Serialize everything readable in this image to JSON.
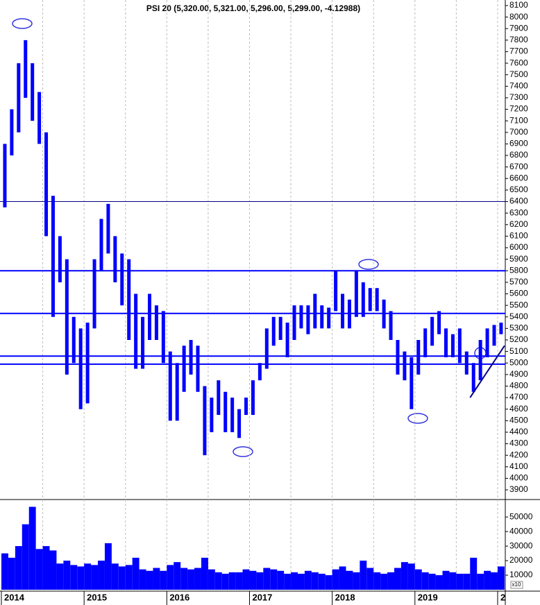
{
  "chart_data": {
    "type": "range-bar",
    "title": "PSI 20 (5,320.00, 5,321.00, 5,296.00, 5,299.00, -4.12988)",
    "color": "#0000ff",
    "categories": [
      "2014",
      null,
      null,
      null,
      null,
      null,
      null,
      null,
      null,
      null,
      null,
      null,
      "2015",
      null,
      null,
      null,
      null,
      null,
      null,
      null,
      null,
      null,
      null,
      null,
      "2016",
      null,
      null,
      null,
      null,
      null,
      null,
      null,
      null,
      null,
      null,
      null,
      "2017",
      null,
      null,
      null,
      null,
      null,
      null,
      null,
      null,
      null,
      null,
      null,
      "2018",
      null,
      null,
      null,
      null,
      null,
      null,
      null,
      null,
      null,
      null,
      null,
      "2019",
      null,
      null,
      null,
      null,
      null,
      null,
      null,
      null,
      null,
      null,
      null,
      "2"
    ],
    "high": [
      6900,
      7200,
      7600,
      7800,
      7600,
      7350,
      7000,
      6450,
      6100,
      5900,
      5400,
      5300,
      5350,
      5900,
      6250,
      6380,
      6100,
      5950,
      5900,
      5600,
      5400,
      5600,
      5500,
      5450,
      5100,
      5000,
      5150,
      5200,
      5150,
      4800,
      4700,
      4850,
      4750,
      4700,
      4600,
      4700,
      4850,
      5000,
      5300,
      5400,
      5400,
      5350,
      5500,
      5500,
      5500,
      5600,
      5500,
      5480,
      5800,
      5600,
      5550,
      5800,
      5700,
      5650,
      5650,
      5550,
      5450,
      5200,
      5100,
      5050,
      5200,
      5300,
      5400,
      5450,
      5300,
      5250,
      5300,
      5100,
      5000,
      5200,
      5300,
      5330,
      5350
    ],
    "low": [
      6350,
      6800,
      7000,
      7300,
      7100,
      6900,
      6100,
      5400,
      5700,
      4900,
      5000,
      4600,
      4650,
      5300,
      5800,
      5950,
      5700,
      5500,
      5200,
      4950,
      4950,
      5200,
      5200,
      5000,
      4500,
      4500,
      4750,
      4900,
      4750,
      4200,
      4400,
      4550,
      4400,
      4400,
      4350,
      4550,
      4550,
      4850,
      4950,
      5150,
      5200,
      5050,
      5200,
      5300,
      5250,
      5300,
      5300,
      5300,
      5450,
      5300,
      5300,
      5400,
      5400,
      5450,
      5450,
      5300,
      5200,
      4900,
      4850,
      4600,
      4900,
      5050,
      5150,
      5250,
      5050,
      5050,
      5000,
      4900,
      4750,
      4850,
      5050,
      5150,
      5250
    ],
    "volume": [
      25000,
      22000,
      30000,
      45000,
      57000,
      28000,
      30000,
      27000,
      18000,
      20000,
      17000,
      16000,
      18000,
      17000,
      20000,
      32000,
      18000,
      16000,
      17000,
      22000,
      14000,
      13000,
      15000,
      13000,
      17000,
      19000,
      15000,
      14000,
      15000,
      22000,
      14000,
      12000,
      11000,
      12000,
      12000,
      14000,
      13000,
      12000,
      15000,
      14000,
      13000,
      11000,
      12000,
      11000,
      13000,
      12000,
      11000,
      10000,
      14000,
      16000,
      13000,
      12000,
      20000,
      15000,
      12000,
      11000,
      12000,
      15000,
      19000,
      18000,
      14000,
      12000,
      11000,
      10000,
      13000,
      12000,
      11000,
      11000,
      22000,
      11000,
      13000,
      12000,
      16000
    ],
    "ylim": [
      3816,
      8148
    ],
    "yticks": [
      3900,
      4000,
      4100,
      4200,
      4300,
      4400,
      4500,
      4600,
      4700,
      4800,
      4900,
      5000,
      5100,
      5200,
      5300,
      5400,
      5500,
      5600,
      5700,
      5800,
      5900,
      6000,
      6100,
      6200,
      6300,
      6400,
      6500,
      6600,
      6700,
      6800,
      6900,
      7000,
      7100,
      7200,
      7300,
      7400,
      7500,
      7600,
      7700,
      7800,
      7900,
      8000,
      8100
    ],
    "y2lim": [
      0,
      62000
    ],
    "y2ticks": [
      10000,
      20000,
      30000,
      40000,
      50000
    ],
    "y2_unit_label": "x10",
    "reference_lines": [
      6400,
      5800,
      5430,
      5060,
      4990
    ],
    "trendline": {
      "x": [
        68,
        73
      ],
      "y": [
        4700,
        5150
      ]
    },
    "grid": true
  }
}
